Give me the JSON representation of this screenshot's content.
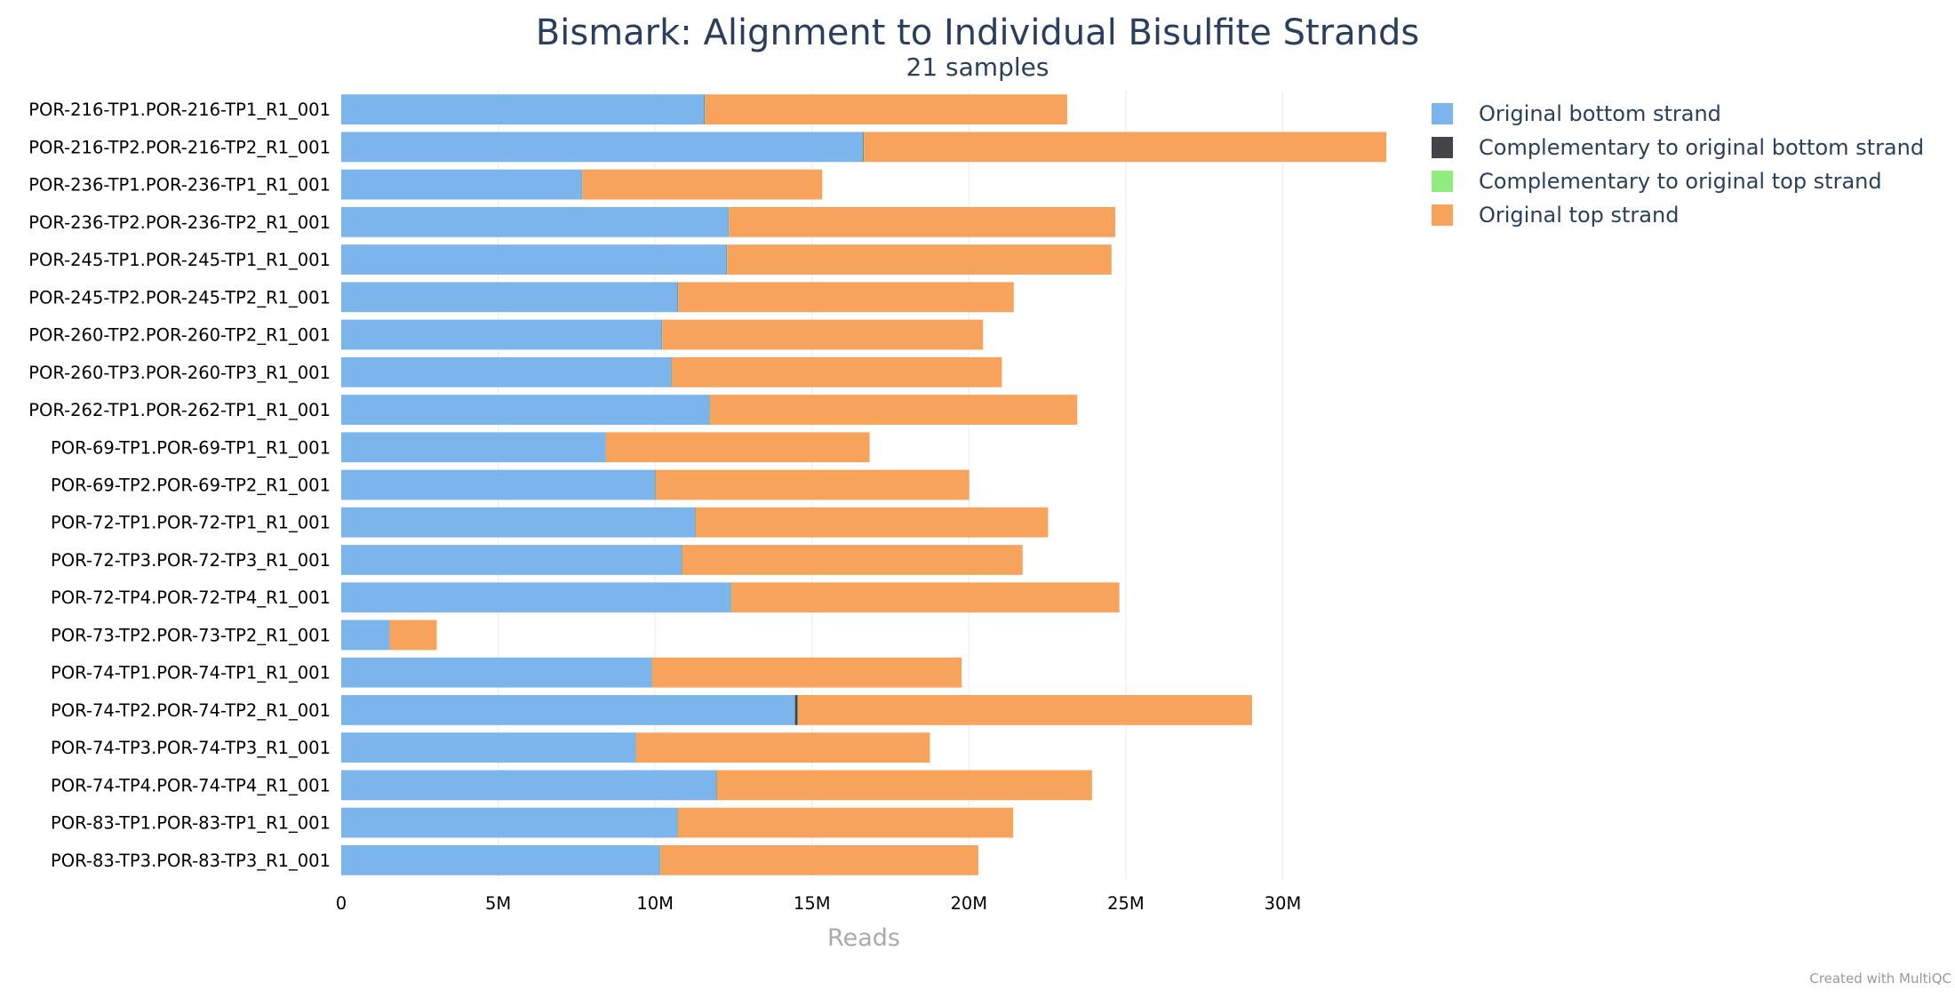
{
  "chart_data": {
    "type": "bar",
    "orientation": "horizontal",
    "stacked": true,
    "title": "Bismark: Alignment to Individual Bisulfite Strands",
    "subtitle": "21 samples",
    "xlabel": "Reads",
    "ylabel": "",
    "xlim": [
      0,
      33300000
    ],
    "x_ticks": [
      {
        "value": 0,
        "label": "0"
      },
      {
        "value": 5000000,
        "label": "5M"
      },
      {
        "value": 10000000,
        "label": "10M"
      },
      {
        "value": 15000000,
        "label": "15M"
      },
      {
        "value": 20000000,
        "label": "20M"
      },
      {
        "value": 25000000,
        "label": "25M"
      },
      {
        "value": 30000000,
        "label": "30M"
      }
    ],
    "grid": true,
    "legend_position": "top-right",
    "categories": [
      "POR-216-TP1.POR-216-TP1_R1_001",
      "POR-216-TP2.POR-216-TP2_R1_001",
      "POR-236-TP1.POR-236-TP1_R1_001",
      "POR-236-TP2.POR-236-TP2_R1_001",
      "POR-245-TP1.POR-245-TP1_R1_001",
      "POR-245-TP2.POR-245-TP2_R1_001",
      "POR-260-TP2.POR-260-TP2_R1_001",
      "POR-260-TP3.POR-260-TP3_R1_001",
      "POR-262-TP1.POR-262-TP1_R1_001",
      "POR-69-TP1.POR-69-TP1_R1_001",
      "POR-69-TP2.POR-69-TP2_R1_001",
      "POR-72-TP1.POR-72-TP1_R1_001",
      "POR-72-TP3.POR-72-TP3_R1_001",
      "POR-72-TP4.POR-72-TP4_R1_001",
      "POR-73-TP2.POR-73-TP2_R1_001",
      "POR-74-TP1.POR-74-TP1_R1_001",
      "POR-74-TP2.POR-74-TP2_R1_001",
      "POR-74-TP3.POR-74-TP3_R1_001",
      "POR-74-TP4.POR-74-TP4_R1_001",
      "POR-83-TP1.POR-83-TP1_R1_001",
      "POR-83-TP3.POR-83-TP3_R1_001"
    ],
    "series": [
      {
        "name": "Original bottom strand",
        "color": "#7cb5ec",
        "values": [
          11570000,
          16620000,
          7670000,
          12340000,
          12280000,
          10720000,
          10210000,
          10510000,
          11730000,
          8420000,
          10000000,
          11270000,
          10850000,
          12410000,
          1540000,
          9890000,
          14460000,
          9380000,
          11950000,
          10710000,
          10150000
        ]
      },
      {
        "name": "Complementary to original bottom strand",
        "color": "#434348",
        "values": [
          12000,
          17000,
          8000,
          13000,
          13000,
          11000,
          10000,
          11000,
          12000,
          9000,
          10000,
          12000,
          11000,
          13000,
          2000,
          10000,
          80000,
          10000,
          12000,
          11000,
          10000
        ]
      },
      {
        "name": "Complementary to original top strand",
        "color": "#90ed7d",
        "values": [
          11000,
          16000,
          8000,
          12000,
          12000,
          10000,
          10000,
          10000,
          11000,
          8000,
          10000,
          11000,
          11000,
          12000,
          2000,
          10000,
          14000,
          9000,
          12000,
          10000,
          10000
        ]
      },
      {
        "name": "Original top strand",
        "color": "#f7a35c",
        "values": [
          11540000,
          16650000,
          7640000,
          12300000,
          12240000,
          10690000,
          10220000,
          10520000,
          11700000,
          8400000,
          9990000,
          11230000,
          10840000,
          12360000,
          1500000,
          9860000,
          14470000,
          9360000,
          11950000,
          10680000,
          10130000
        ]
      }
    ]
  },
  "footer": {
    "credit": "Created with MultiQC"
  }
}
